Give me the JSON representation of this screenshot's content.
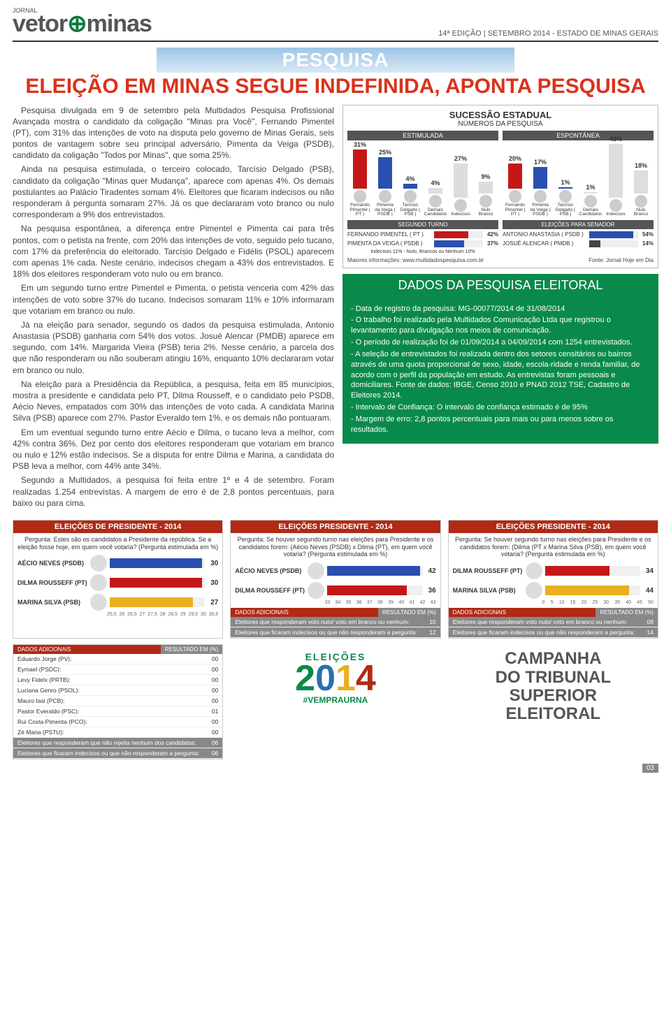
{
  "header": {
    "jornal": "JORNAL",
    "logo_a": "vetor",
    "logo_plus": "⊕",
    "logo_b": "minas",
    "edition": "14ª EDIÇÃO | SETEMBRO 2014 - ESTADO DE MINAS GERAIS"
  },
  "banner": "PESQUISA",
  "headline": "ELEIÇÃO EM MINAS SEGUE INDEFINIDA, APONTA PESQUISA",
  "article": [
    "Pesquisa divulgada em 9 de setembro pela Multidados Pesquisa Profissional Avançada mostra o candidato da coligação \"Minas pra Você\", Fernando Pimentel (PT), com 31% das intenções de voto na disputa pelo governo de Minas Gerais, seis pontos de vantagem sobre seu principal adversário, Pimenta da Veiga (PSDB), candidato da coligação \"Todos por Minas\", que soma 25%.",
    "Ainda na pesquisa estimulada, o terceiro colocado, Tarcísio Delgado (PSB), candidato da coligação \"Minas quer Mudança\", aparece com apenas 4%. Os demais postulantes ao Palácio Tiradentes somam 4%. Eleitores que ficaram indecisos ou não responderam à pergunta somaram 27%. Já os que declararam voto branco ou nulo corresponderam a 9% dos entrevistados.",
    "Na pesquisa espontânea, a diferença entre Pimentel e Pimenta cai para três pontos, com o petista na frente, com 20% das intenções de voto, seguido pelo tucano, com 17% da preferência do eleitorado. Tarcísio Delgado e Fidélis (PSOL) aparecem com apenas 1% cada. Neste cenário, indecisos chegam a 43% dos entrevistados. E 18% dos eleitores responderam voto nulo ou em branco.",
    "Em um segundo turno entre Pimentel e Pimenta, o petista venceria com 42% das intenções de voto sobre 37% do tucano. Indecisos somaram 11% e 10% informaram que votariam em branco ou nulo.",
    "Já na eleição para senador, segundo os dados da pesquisa estimulada, Antonio Anastasia (PSDB) ganharia com 54% dos votos. Josué Alencar (PMDB) aparece em segundo, com 14%. Margarida Vieira (PSB) teria 2%. Nesse cenário, a parcela dos que não responderam ou não souberam atingiu 16%, enquanto 10% declararam votar em branco ou nulo.",
    "Na eleição para a Presidência da República, a pesquisa, feita em 85 municípios, mostra a presidente e candidata pelo PT, Dilma Rousseff, e o candidato pelo PSDB, Aécio Neves, empatados com 30% das intenções de voto cada. A candidata Marina Silva (PSB) aparece com 27%. Pastor Everaldo tem 1%, e os demais não pontuaram.",
    "Em um eventual segundo turno entre Aécio e Dilma, o tucano leva a melhor, com 42% contra 36%. Dez por cento dos eleitores responderam que votariam em branco ou nulo e 12% estão indecisos. Se a disputa for entre Dilma e Marina, a candidata do PSB leva a melhor, com 44% ante 34%.",
    "Segundo a Multidados, a pesquisa foi feita entre 1º e 4 de setembro. Foram realizadas 1.254 entrevistas. A margem de erro é de 2,8 pontos percentuais, para baixo ou para cima."
  ],
  "survey": {
    "title": "SUCESSÃO ESTADUAL",
    "sub": "NÚMEROS DA PESQUISA",
    "panels": [
      {
        "hdr": "ESTIMULADA",
        "max": 50,
        "bars": [
          {
            "v": 31,
            "lbl": "Fernando Pimentel ( PT )",
            "c": "#c41818"
          },
          {
            "v": 25,
            "lbl": "Pimenta da Veiga ( PSDB )",
            "c": "#2a4fb0"
          },
          {
            "v": 4,
            "lbl": "Tarcísio Delgado ( PSB )",
            "c": "#2a4fb0"
          },
          {
            "v": 4,
            "lbl": "Demais Candidatos",
            "c": "#ddd"
          },
          {
            "v": 27,
            "lbl": "Indecisos",
            "c": "#ddd"
          },
          {
            "v": 9,
            "lbl": "Nulo Branco",
            "c": "#ddd"
          }
        ],
        "subhdr": "SEGUNDO TURNO",
        "rows": [
          {
            "lab": "FERNANDO PIMENTEL ( PT )",
            "v": 42,
            "c": "#c41818"
          },
          {
            "lab": "PIMENTA DA VEIGA ( PSDB )",
            "v": 37,
            "c": "#2a4fb0"
          }
        ],
        "note": "Indecisos 11% - Nulo, Brancos ou Nenhum 10%"
      },
      {
        "hdr": "ESPONTÂNEA",
        "max": 50,
        "bars": [
          {
            "v": 20,
            "lbl": "Fernando Pimentel ( PT )",
            "c": "#c41818"
          },
          {
            "v": 17,
            "lbl": "Pimenta da Veiga ( PSDB )",
            "c": "#2a4fb0"
          },
          {
            "v": 1,
            "lbl": "Tarcísio Delgado ( PSB )",
            "c": "#2a4fb0"
          },
          {
            "v": 1,
            "lbl": "Demais Candidatos",
            "c": "#ddd"
          },
          {
            "v": 43,
            "lbl": "Indecisos",
            "c": "#ddd"
          },
          {
            "v": 18,
            "lbl": "Nulo Branco",
            "c": "#ddd"
          }
        ],
        "subhdr": "ELEIÇÕES PARA SENADOR",
        "rows": [
          {
            "lab": "ANTONIO ANASTASIA ( PSDB )",
            "v": 54,
            "c": "#2a4fb0"
          },
          {
            "lab": "JOSUÉ ALENCAR ( PMDB )",
            "v": 14,
            "c": "#444"
          }
        ],
        "note": ""
      }
    ],
    "footL": "Maiores informações: www.multidadospesquisa.com.br",
    "footR": "Fonte: Jornal Hoje em Dia"
  },
  "greenbox": {
    "hdr": "DADOS DA PESQUISA ELEITORAL",
    "lines": [
      "- Data de registro da pesquisa: MG-00077/2014 de 31/08/2014",
      "- O trabalho foi realizado pela Multidados Comunicação Ltda que registrou o levantamento para divulgação nos meios de comunicação.",
      "- O período de realização foi de 01/09/2014 a 04/09/2014 com 1254 entrevistados.",
      "- A seleção de entrevistados foi realizada dentro dos setores censitários ou bairros através de uma quota proporcional de sexo, idade, escola-ridade e renda familiar, de acordo com o perfil da população em estudo. As entrevistas foram pessoais e domiciliares. Fonte de dados: IBGE, Censo 2010 e PNAD 2012 TSE, Cadastro de Eleitores 2014.",
      "- Intervalo de Confiança: O intervalo de confiança estimado é de 95%",
      "- Margem de erro: 2,8 pontos percentuais para mais ou para menos sobre os resultados."
    ]
  },
  "polls": [
    {
      "hdr": "ELEIÇÕES DE PRESIDENTE - 2014",
      "q": "Pergunta: Estes são os candidatos a Presidente da república. Se a eleição fosse hoje, em quem você votaria? (Pergunta estimulada em %)",
      "max": 31,
      "bars": [
        {
          "name": "AÉCIO NEVES (PSDB)",
          "v": 30,
          "c": "#2a4fb0"
        },
        {
          "name": "DILMA ROUSSEFF (PT)",
          "v": 30,
          "c": "#c41818"
        },
        {
          "name": "MARINA SILVA (PSB)",
          "v": 27,
          "c": "#e8b020"
        }
      ],
      "axis": [
        "25,5",
        "26",
        "26,5",
        "27",
        "27,5",
        "28",
        "28,5",
        "29",
        "29,5",
        "30",
        "30,5"
      ],
      "extras": [
        {
          "l": "Eduardo Jorge (PV):",
          "r": "00"
        },
        {
          "l": "Eymael (PSDC):",
          "r": "00"
        },
        {
          "l": "Levy Fidelx (PRTB):",
          "r": "00"
        },
        {
          "l": "Luciana Genro (PSOL):",
          "r": "00"
        },
        {
          "l": "Mauro Iasi (PCB):",
          "r": "00"
        },
        {
          "l": "Pastor Everaldo (PSC):",
          "r": "01"
        },
        {
          "l": "Rui Costa Pimenta (PCO):",
          "r": "00"
        },
        {
          "l": "Zé Maria (PSTU):",
          "r": "00"
        }
      ],
      "dark": [
        {
          "l": "Eleitores que responderam que não rejeita nenhum dos candidatos:",
          "r": "06"
        },
        {
          "l": "Eleitores que ficaram indecisos ou que não responderam a pergunta:",
          "r": "06"
        }
      ]
    },
    {
      "hdr": "ELEIÇÕES PRESIDENTE - 2014",
      "q": "Pergunta: Se houver segundo turno nas eleições para Presidente e os candidatos forem: (Aécio Neves (PSDB) x Dilma (PT), em quem você votaria? (Pergunta estimulada em %)",
      "max": 43,
      "bars": [
        {
          "name": "AÉCIO NEVES (PSDB)",
          "v": 42,
          "c": "#2a4fb0"
        },
        {
          "name": "DILMA ROUSSEFF (PT)",
          "v": 36,
          "c": "#c41818"
        }
      ],
      "axis": [
        "33",
        "34",
        "35",
        "36",
        "37",
        "38",
        "39",
        "40",
        "41",
        "42",
        "43"
      ],
      "extras": [],
      "dark": [
        {
          "l": "Eleitores que responderam voto nulo/ voto em branco ou nenhum:",
          "r": "10"
        },
        {
          "l": "Eleitores que ficaram indecisos ou que não responderam a pergunta:",
          "r": "12"
        }
      ]
    },
    {
      "hdr": "ELEIÇÕES PRESIDENTE - 2014",
      "q": "Pergunta: Se houver segundo turno nas eleições para Presidente e os candidatos forem: (Dilma (PT x Marina Silva (PSB), em quem você votaria? (Pergunta estimulada em %)",
      "max": 50,
      "bars": [
        {
          "name": "DILMA ROUSSEFF (PT)",
          "v": 34,
          "c": "#c41818"
        },
        {
          "name": "MARINA SILVA (PSB)",
          "v": 44,
          "c": "#e8b020"
        }
      ],
      "axis": [
        "0",
        "5",
        "10",
        "15",
        "20",
        "25",
        "30",
        "35",
        "40",
        "45",
        "50"
      ],
      "extras": [],
      "dark": [
        {
          "l": "Eleitores que responderam voto nulo/ voto em branco ou nenhum:",
          "r": "08"
        },
        {
          "l": "Eleitores que ficaram indecisos ou que não responderam a pergunta:",
          "r": "14"
        }
      ]
    }
  ],
  "extra_hdr": {
    "l": "DADOS ADICIONAIS",
    "r": "RESULTADO EM (%)"
  },
  "logo2014": {
    "el": "ELEIÇÕES",
    "tag": "#VEMPRAURNA"
  },
  "tse": [
    "CAMPANHA",
    "DO TRIBUNAL",
    "SUPERIOR",
    "ELEITORAL"
  ],
  "pagenum": "03"
}
